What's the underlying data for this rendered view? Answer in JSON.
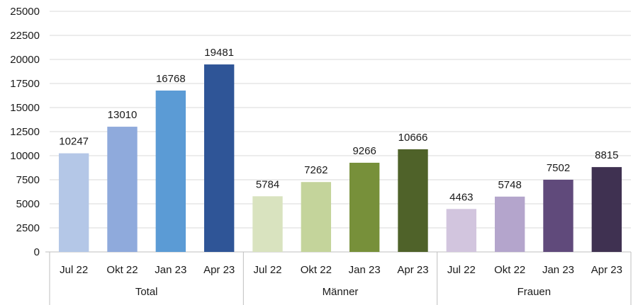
{
  "chart_data": {
    "type": "bar",
    "ylim": [
      0,
      25000
    ],
    "yticks": [
      0,
      2500,
      5000,
      7500,
      10000,
      12500,
      15000,
      17500,
      20000,
      22500,
      25000
    ],
    "ytick_labels": [
      "0",
      "2500",
      "5000",
      "7500",
      "10000",
      "12500",
      "15000",
      "17500",
      "20000",
      "22500",
      "25000"
    ],
    "grid": true,
    "groups": [
      {
        "name": "Total",
        "categories": [
          "Jul 22",
          "Okt 22",
          "Jan 23",
          "Apr 23"
        ],
        "values": [
          10247,
          13010,
          16768,
          19481
        ],
        "colors": [
          "#b4c7e7",
          "#8faadc",
          "#5b9bd5",
          "#2f5597"
        ]
      },
      {
        "name": "Männer",
        "categories": [
          "Jul 22",
          "Okt 22",
          "Jan 23",
          "Apr 23"
        ],
        "values": [
          5784,
          7262,
          9266,
          10666
        ],
        "colors": [
          "#d9e3bf",
          "#c4d49b",
          "#77903a",
          "#4f6229"
        ]
      },
      {
        "name": "Frauen",
        "categories": [
          "Jul 22",
          "Okt 22",
          "Jan 23",
          "Apr 23"
        ],
        "values": [
          4463,
          5748,
          7502,
          8815
        ],
        "colors": [
          "#d2c5de",
          "#b4a5cc",
          "#604a7b",
          "#3f3151"
        ]
      }
    ],
    "colors": {
      "grid": "#d9d9d9",
      "axis": "#bfbfbf",
      "text": "#1a1a1a"
    }
  }
}
